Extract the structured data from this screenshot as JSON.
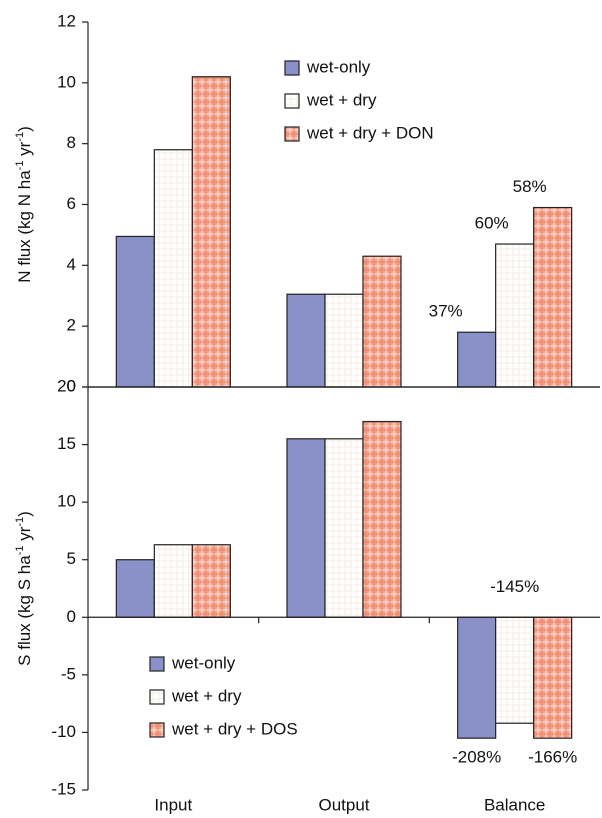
{
  "chart_data": [
    {
      "type": "bar",
      "y_label_parts": [
        "N flux (kg N ha",
        "-1",
        " yr",
        "-1",
        ")"
      ],
      "categories": [
        null,
        null,
        null
      ],
      "series": [
        {
          "name": "wet-only",
          "color": "#8a91c8",
          "values": [
            4.95,
            3.05,
            1.8
          ]
        },
        {
          "name": "wet + dry",
          "color": "#ffffff",
          "values": [
            7.8,
            3.05,
            4.7
          ]
        },
        {
          "name": "wet + dry + DON",
          "color": "#f4a08a",
          "values": [
            10.2,
            4.3,
            5.9
          ]
        }
      ],
      "annotations": [
        "37%",
        "60%",
        "58%"
      ],
      "ylim": [
        0,
        12
      ],
      "yticks": [
        0,
        2,
        4,
        6,
        8,
        10,
        12
      ],
      "legend": "upper center"
    },
    {
      "type": "bar",
      "y_label_parts": [
        "S flux (kg S ha",
        "-1",
        " yr",
        "-1",
        ")"
      ],
      "categories": [
        "Input",
        "Output",
        "Balance"
      ],
      "series": [
        {
          "name": "wet-only",
          "color": "#8a91c8",
          "values": [
            5,
            15.5,
            -10.5
          ]
        },
        {
          "name": "wet + dry",
          "color": "#ffffff",
          "values": [
            6.3,
            15.5,
            -9.2
          ]
        },
        {
          "name": "wet + dry + DOS",
          "color": "#f4a08a",
          "values": [
            6.3,
            17,
            -10.5
          ]
        }
      ],
      "annotations": [
        "-208%",
        "-145%",
        "-166%"
      ],
      "ylim": [
        -15,
        20
      ],
      "yticks": [
        -15,
        -10,
        -5,
        0,
        5,
        10,
        15,
        20
      ],
      "legend": "lower left"
    }
  ]
}
